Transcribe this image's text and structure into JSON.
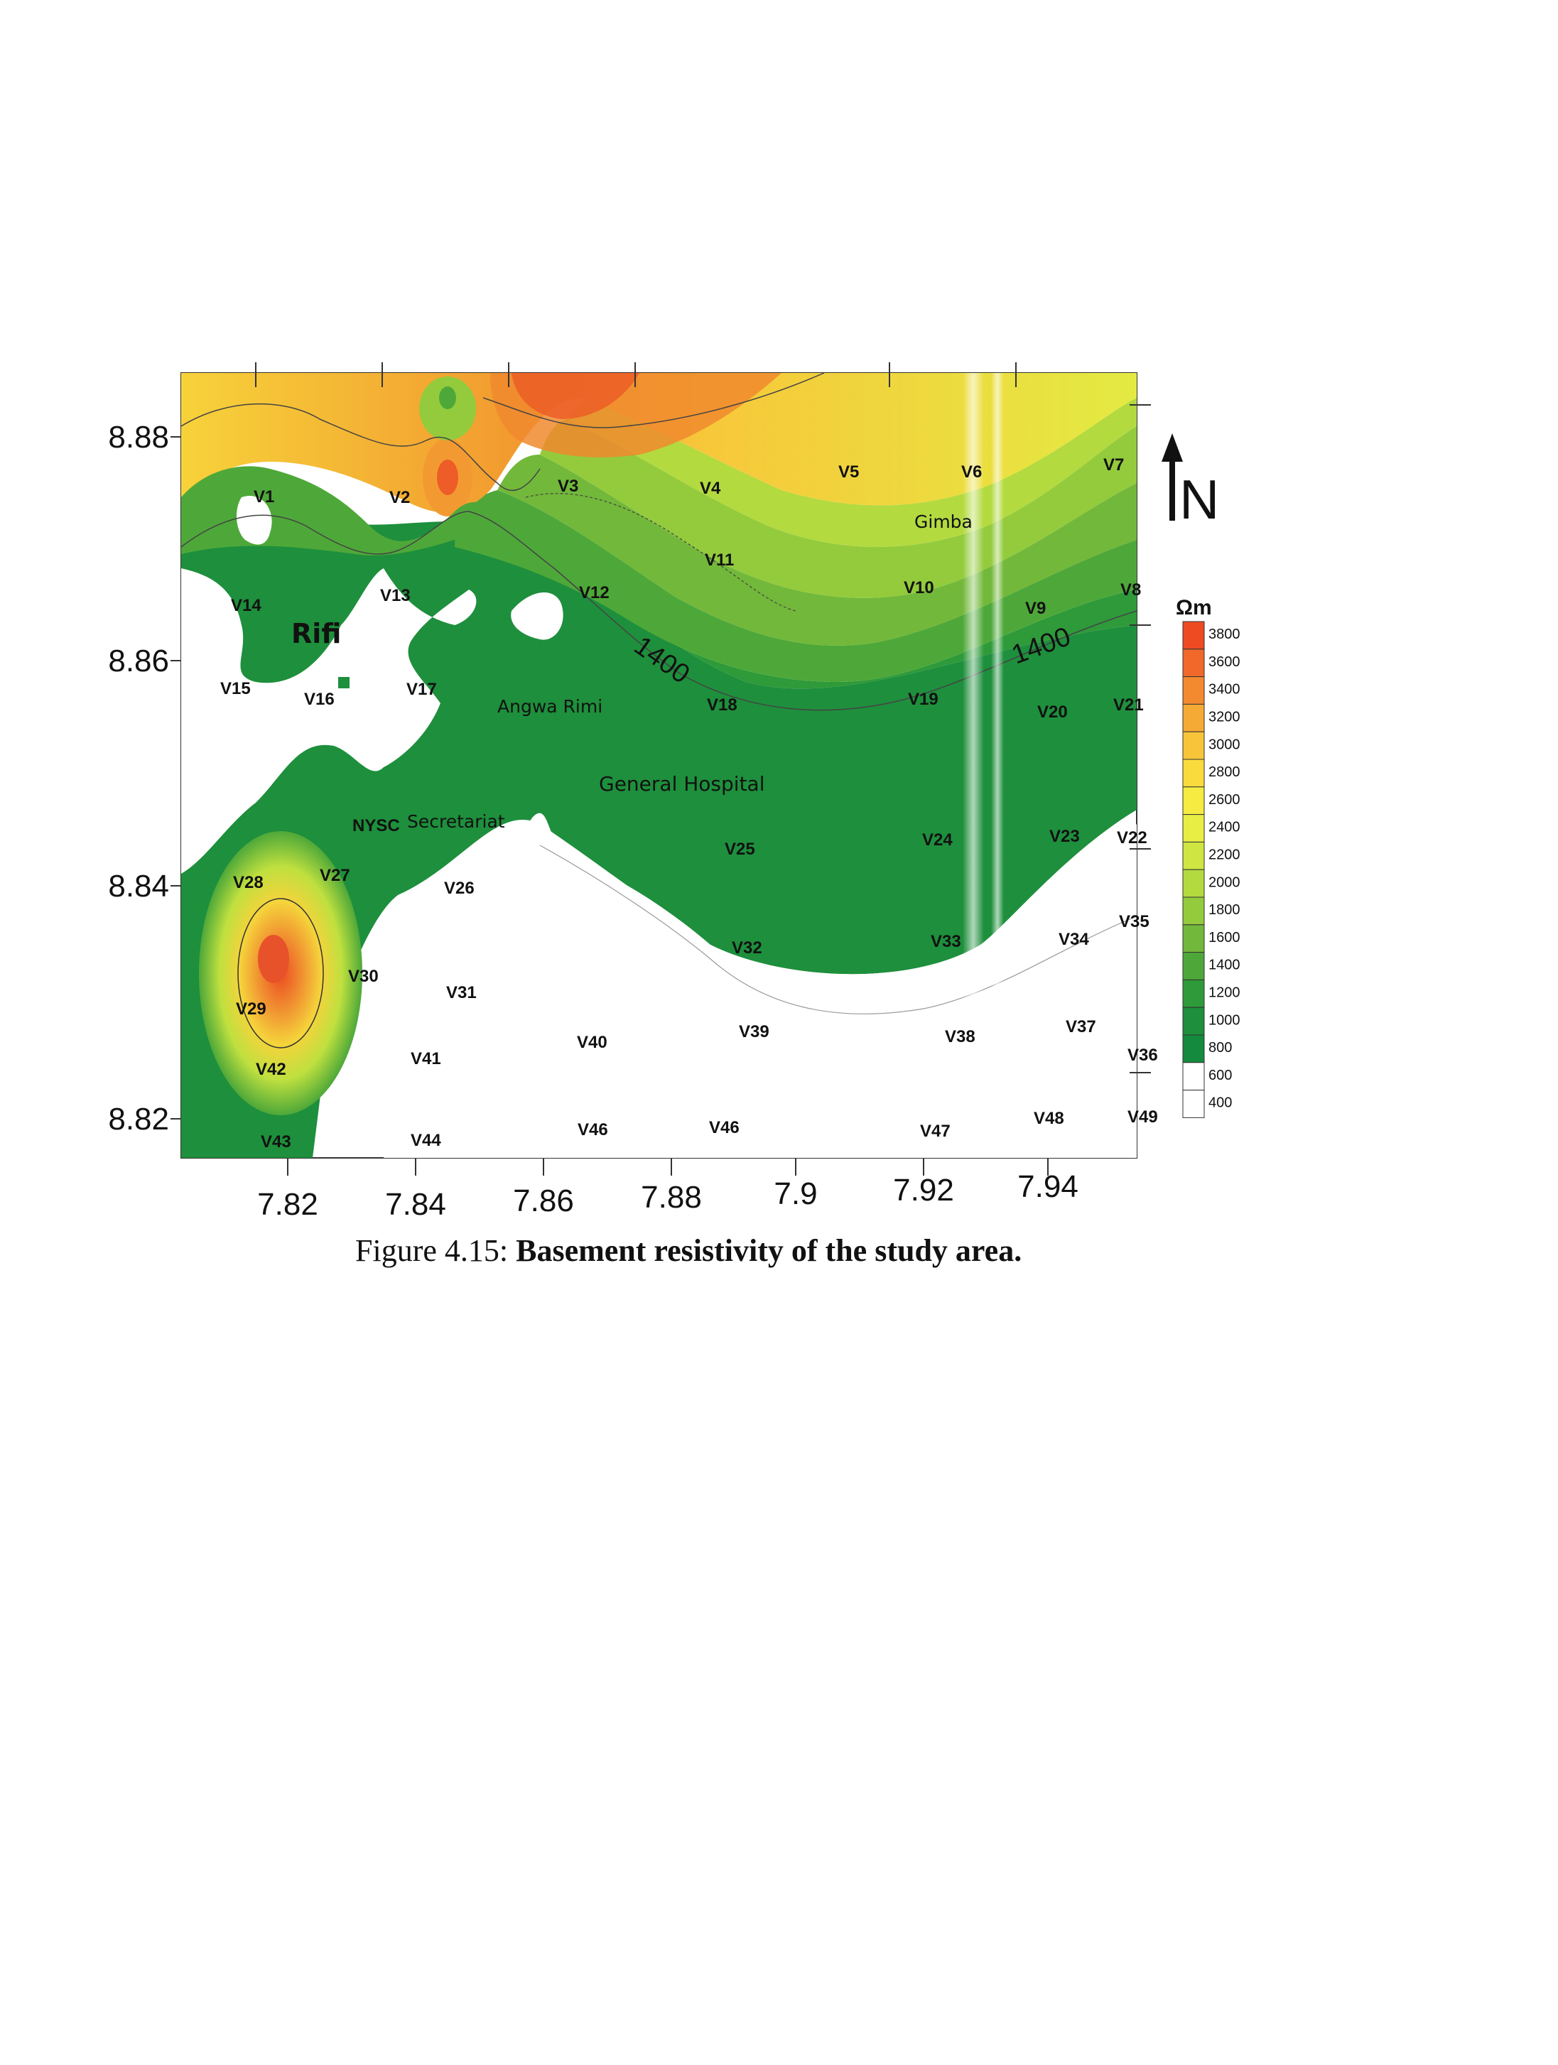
{
  "figure": {
    "caption_number": "Figure 4.15:",
    "caption_text": "Basement resistivity of the study area."
  },
  "map": {
    "x_axis": {
      "ticks": [
        "7.82",
        "7.84",
        "7.86",
        "7.88",
        "7.9",
        "7.92",
        "7.94"
      ]
    },
    "y_axis": {
      "ticks": [
        "8.88",
        "8.86",
        "8.84",
        "8.82"
      ]
    },
    "contour_labels": [
      "1400",
      "1400"
    ],
    "places": [
      "Rifi",
      "Gimba",
      "Angwa Rimi",
      "General Hospital",
      "NYSC",
      "Secretariat"
    ],
    "stations": [
      "V1",
      "V2",
      "V3",
      "V4",
      "V5",
      "V6",
      "V7",
      "V8",
      "V9",
      "V10",
      "V11",
      "V12",
      "V13",
      "V14",
      "V15",
      "V16",
      "V17",
      "V18",
      "V19",
      "V20",
      "V21",
      "V22",
      "V23",
      "V24",
      "V25",
      "V26",
      "V27",
      "V28",
      "V29",
      "V30",
      "V31",
      "V32",
      "V33",
      "V34",
      "V35",
      "V36",
      "V37",
      "V38",
      "V39",
      "V40",
      "V41",
      "V42",
      "V43",
      "V44",
      "V46",
      "V46",
      "V47",
      "V48",
      "V49"
    ],
    "north_arrow": "N"
  },
  "legend": {
    "unit": "Ωm",
    "levels": [
      "3800",
      "3600",
      "3400",
      "3200",
      "3000",
      "2800",
      "2600",
      "2400",
      "2200",
      "2000",
      "1800",
      "1600",
      "1400",
      "1200",
      "1000",
      "800",
      "600",
      "400"
    ],
    "colors": [
      "#ee4b23",
      "#f0692a",
      "#f38a30",
      "#f6aa36",
      "#f8c43a",
      "#fadb3e",
      "#f6eb42",
      "#e9ee45",
      "#cfe642",
      "#b3da3f",
      "#93cb3c",
      "#72b83a",
      "#4ea839",
      "#2e9a3a",
      "#1e8f3c",
      "#138a3d",
      "#ffffff",
      "#ffffff"
    ]
  },
  "chart_data": {
    "type": "heatmap",
    "title": "Basement resistivity of the study area.",
    "x_ticks": [
      7.82,
      7.84,
      7.86,
      7.88,
      7.9,
      7.92,
      7.94
    ],
    "y_ticks": [
      8.88,
      8.86,
      8.84,
      8.82
    ],
    "colorbar_unit": "Ωm",
    "colorbar_levels": [
      3800,
      3600,
      3400,
      3200,
      3000,
      2800,
      2600,
      2400,
      2200,
      2000,
      1800,
      1600,
      1400,
      1200,
      1000,
      800,
      600,
      400
    ],
    "contour_annotations": [
      1400,
      1400
    ]
  }
}
